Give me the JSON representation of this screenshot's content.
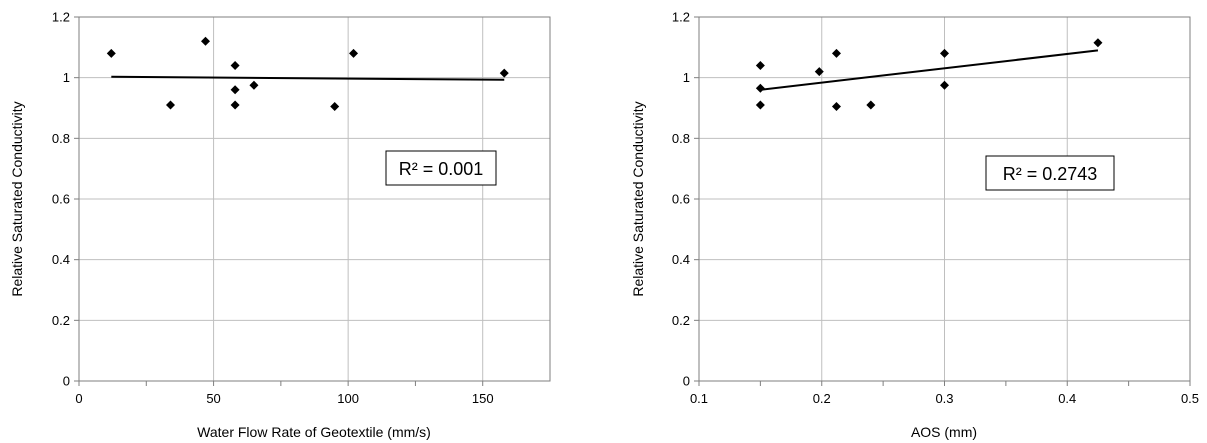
{
  "chart_data": [
    {
      "type": "scatter",
      "xlabel": "Water Flow Rate of Geotextile (mm/s)",
      "ylabel": "Relative Saturated Conductivity",
      "xlim": [
        0,
        175
      ],
      "ylim": [
        0,
        1.2
      ],
      "x_ticks": [
        0,
        50,
        100,
        150
      ],
      "x_tick_labels": [
        "0",
        "50",
        "100",
        "150"
      ],
      "y_ticks": [
        0,
        0.2,
        0.4,
        0.6,
        0.8,
        1,
        1.2
      ],
      "y_tick_labels": [
        "0",
        "0.2",
        "0.4",
        "0.6",
        "0.8",
        "1",
        "1.2"
      ],
      "grid": true,
      "marker": "diamond",
      "color": "#000000",
      "points": [
        {
          "x": 12,
          "y": 1.08
        },
        {
          "x": 34,
          "y": 0.91
        },
        {
          "x": 47,
          "y": 1.12
        },
        {
          "x": 58,
          "y": 1.04
        },
        {
          "x": 58,
          "y": 0.96
        },
        {
          "x": 58,
          "y": 0.91
        },
        {
          "x": 65,
          "y": 0.975
        },
        {
          "x": 95,
          "y": 0.905
        },
        {
          "x": 102,
          "y": 1.08
        },
        {
          "x": 158,
          "y": 1.015
        }
      ],
      "trendline": {
        "x": [
          12,
          158
        ],
        "y": [
          1.003,
          0.993
        ]
      },
      "annotation": "R² = 0.001"
    },
    {
      "type": "scatter",
      "xlabel": "AOS (mm)",
      "ylabel": "Relative Saturated Conductivity",
      "xlim": [
        0.1,
        0.5
      ],
      "ylim": [
        0,
        1.2
      ],
      "x_ticks": [
        0.1,
        0.2,
        0.3,
        0.4,
        0.5
      ],
      "x_tick_labels": [
        "0.1",
        "0.2",
        "0.3",
        "0.4",
        "0.5"
      ],
      "y_ticks": [
        0,
        0.2,
        0.4,
        0.6,
        0.8,
        1,
        1.2
      ],
      "y_tick_labels": [
        "0",
        "0.2",
        "0.4",
        "0.6",
        "0.8",
        "1",
        "1.2"
      ],
      "grid": true,
      "marker": "diamond",
      "color": "#000000",
      "points": [
        {
          "x": 0.15,
          "y": 1.04
        },
        {
          "x": 0.15,
          "y": 0.965
        },
        {
          "x": 0.15,
          "y": 0.91
        },
        {
          "x": 0.198,
          "y": 1.02
        },
        {
          "x": 0.212,
          "y": 1.08
        },
        {
          "x": 0.212,
          "y": 0.905
        },
        {
          "x": 0.24,
          "y": 0.91
        },
        {
          "x": 0.3,
          "y": 1.08
        },
        {
          "x": 0.3,
          "y": 0.975
        },
        {
          "x": 0.425,
          "y": 1.115
        }
      ],
      "trendline": {
        "x": [
          0.15,
          0.425
        ],
        "y": [
          0.96,
          1.09
        ]
      },
      "annotation": "R² = 0.2743"
    }
  ]
}
